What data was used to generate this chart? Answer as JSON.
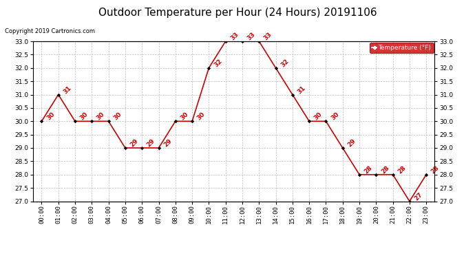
{
  "title": "Outdoor Temperature per Hour (24 Hours) 20191106",
  "copyright": "Copyright 2019 Cartronics.com",
  "legend_label": "Temperature (°F)",
  "hours": [
    "00:00",
    "01:00",
    "02:00",
    "03:00",
    "04:00",
    "05:00",
    "06:00",
    "07:00",
    "08:00",
    "09:00",
    "10:00",
    "11:00",
    "12:00",
    "13:00",
    "14:00",
    "15:00",
    "16:00",
    "17:00",
    "18:00",
    "19:00",
    "20:00",
    "21:00",
    "22:00",
    "23:00"
  ],
  "temps": [
    30,
    31,
    30,
    30,
    30,
    29,
    29,
    29,
    30,
    30,
    32,
    33,
    33,
    33,
    32,
    31,
    30,
    30,
    29,
    28,
    28,
    28,
    27,
    28
  ],
  "ylim_min": 27.0,
  "ylim_max": 33.0,
  "line_color": "#cc0000",
  "marker_color": "#000000",
  "label_color": "#cc0000",
  "background_color": "#ffffff",
  "grid_color": "#bbbbbb",
  "legend_bg": "#cc0000",
  "legend_text_color": "#ffffff",
  "title_fontsize": 11,
  "label_fontsize": 6.5,
  "tick_fontsize": 6.5,
  "copyright_fontsize": 6.0
}
